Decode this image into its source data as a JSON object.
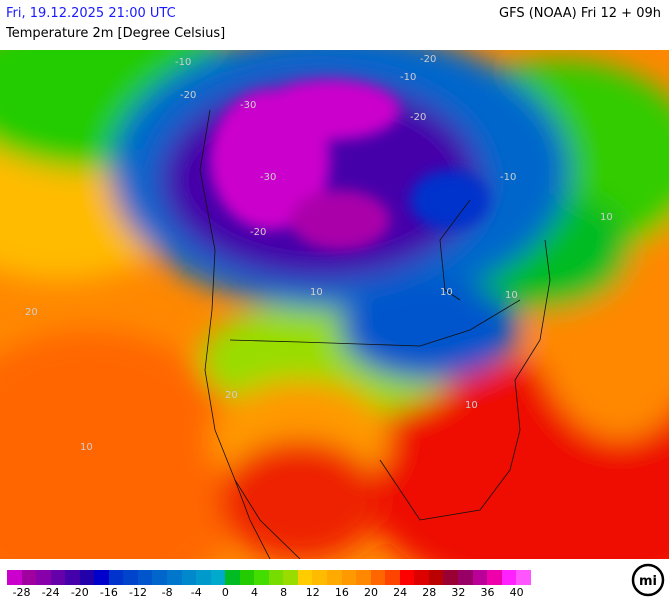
{
  "header": {
    "datetime": "Fri, 19.12.2025 21:00 UTC",
    "model": "GFS (NOAA) Fri 12 + 09h",
    "parameter": "Temperature 2m [Degree Celsius]"
  },
  "legend": {
    "colors": [
      "#cc00cc",
      "#a000a0",
      "#8800aa",
      "#6600aa",
      "#4400aa",
      "#2200aa",
      "#0000cc",
      "#0033cc",
      "#0044cc",
      "#0055cc",
      "#0066cc",
      "#0077cc",
      "#0088cc",
      "#0099cc",
      "#00aacc",
      "#00bb22",
      "#22cc00",
      "#44dd00",
      "#77dd00",
      "#99dd00",
      "#ffcc00",
      "#ffbb00",
      "#ffaa00",
      "#ff9900",
      "#ff8800",
      "#ff6600",
      "#ff4400",
      "#ff0000",
      "#dd0000",
      "#bb0000",
      "#990033",
      "#990066",
      "#bb0099",
      "#ee00aa",
      "#ff22ff",
      "#ff55ff"
    ],
    "labels": [
      "-28",
      "-24",
      "-20",
      "-16",
      "-12",
      "-8",
      "-4",
      "0",
      "4",
      "8",
      "12",
      "16",
      "20",
      "24",
      "28",
      "32",
      "36",
      "40"
    ]
  },
  "contour_labels": [
    "-10",
    "-20",
    "-30",
    "-30",
    "-20",
    "-10",
    "-20",
    "-20",
    "-10",
    "10",
    "10",
    "10",
    "10",
    "10",
    "20",
    "20",
    "10"
  ],
  "logo": "mi"
}
